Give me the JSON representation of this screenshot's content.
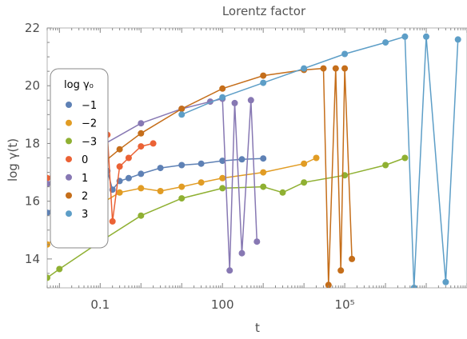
{
  "chart_data": {
    "type": "scatter",
    "title": "Lorentz factor",
    "xlabel": "t",
    "ylabel": "log γ(t)",
    "x_scale": "log10",
    "xlim": [
      0.005,
      100000000
    ],
    "ylim": [
      13,
      22
    ],
    "grid": false,
    "x_ticks": [
      {
        "value": 0.1,
        "label": "0.1"
      },
      {
        "value": 100,
        "label": "100"
      },
      {
        "value": 100000,
        "label": "10⁵"
      }
    ],
    "y_ticks": [
      {
        "value": 14,
        "label": "14"
      },
      {
        "value": 16,
        "label": "16"
      },
      {
        "value": 18,
        "label": "18"
      },
      {
        "value": 20,
        "label": "20"
      },
      {
        "value": 22,
        "label": "22"
      }
    ],
    "legend": {
      "title": "log γ₀",
      "placement": "top-left"
    },
    "series": [
      {
        "name": "−1",
        "color": "#5E81B5",
        "points": [
          [
            0.005,
            15.6
          ],
          [
            0.01,
            15.95
          ],
          [
            0.02,
            16.3
          ],
          [
            0.05,
            16.75
          ],
          [
            0.1,
            17.0
          ],
          [
            0.15,
            17.05
          ],
          [
            0.2,
            16.4
          ],
          [
            0.3,
            16.7
          ],
          [
            0.5,
            16.8
          ],
          [
            1,
            16.95
          ],
          [
            3,
            17.15
          ],
          [
            10,
            17.25
          ],
          [
            30,
            17.3
          ],
          [
            100,
            17.4
          ],
          [
            300,
            17.45
          ],
          [
            1000,
            17.48
          ]
        ]
      },
      {
        "name": "−2",
        "color": "#E19C24",
        "points": [
          [
            0.005,
            14.5
          ],
          [
            0.01,
            14.85
          ],
          [
            0.03,
            15.35
          ],
          [
            0.1,
            15.9
          ],
          [
            0.3,
            16.3
          ],
          [
            1,
            16.45
          ],
          [
            3,
            16.35
          ],
          [
            10,
            16.5
          ],
          [
            30,
            16.65
          ],
          [
            100,
            16.8
          ],
          [
            1000,
            17.0
          ],
          [
            10000,
            17.3
          ],
          [
            20000,
            17.5
          ]
        ]
      },
      {
        "name": "−3",
        "color": "#8FB032",
        "points": [
          [
            0.005,
            13.35
          ],
          [
            0.01,
            13.65
          ],
          [
            0.1,
            14.6
          ],
          [
            1,
            15.5
          ],
          [
            10,
            16.1
          ],
          [
            100,
            16.45
          ],
          [
            1000,
            16.5
          ],
          [
            3000,
            16.3
          ],
          [
            10000,
            16.65
          ],
          [
            100000,
            16.9
          ],
          [
            1000000,
            17.25
          ],
          [
            3000000,
            17.5
          ]
        ]
      },
      {
        "name": "0",
        "color": "#EB6235",
        "points": [
          [
            0.005,
            16.8
          ],
          [
            0.01,
            17.1
          ],
          [
            0.02,
            17.4
          ],
          [
            0.05,
            17.85
          ],
          [
            0.1,
            18.15
          ],
          [
            0.15,
            18.3
          ],
          [
            0.2,
            15.3
          ],
          [
            0.3,
            17.2
          ],
          [
            0.5,
            17.5
          ],
          [
            1,
            17.9
          ],
          [
            2,
            18.0
          ]
        ]
      },
      {
        "name": "1",
        "color": "#8778B3",
        "points": [
          [
            0.005,
            16.6
          ],
          [
            0.01,
            16.95
          ],
          [
            0.1,
            17.9
          ],
          [
            1,
            18.7
          ],
          [
            10,
            19.2
          ],
          [
            50,
            19.45
          ],
          [
            100,
            19.55
          ],
          [
            150,
            13.6
          ],
          [
            200,
            19.4
          ],
          [
            300,
            14.2
          ],
          [
            500,
            19.5
          ],
          [
            700,
            14.6
          ]
        ]
      },
      {
        "name": "2",
        "color": "#C56E1A",
        "points": [
          [
            0.05,
            16.9
          ],
          [
            0.3,
            17.8
          ],
          [
            1,
            18.35
          ],
          [
            10,
            19.2
          ],
          [
            100,
            19.9
          ],
          [
            1000,
            20.35
          ],
          [
            10000,
            20.55
          ],
          [
            30000,
            20.6
          ],
          [
            40000,
            13.1
          ],
          [
            60000,
            20.6
          ],
          [
            80000,
            13.6
          ],
          [
            100000,
            20.6
          ],
          [
            150000,
            14.0
          ]
        ]
      },
      {
        "name": "3",
        "color": "#5D9EC7",
        "points": [
          [
            10,
            19.0
          ],
          [
            100,
            19.6
          ],
          [
            1000,
            20.1
          ],
          [
            10000,
            20.6
          ],
          [
            100000,
            21.1
          ],
          [
            1000000,
            21.5
          ],
          [
            3000000,
            21.7
          ],
          [
            5000000,
            13.0
          ],
          [
            10000000,
            21.7
          ],
          [
            30000000,
            13.2
          ],
          [
            60000000,
            21.6
          ]
        ]
      }
    ]
  }
}
